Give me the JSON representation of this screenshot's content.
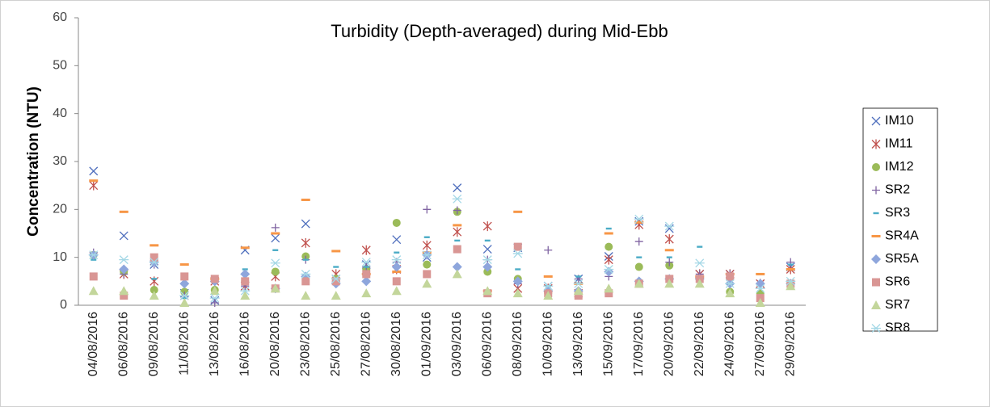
{
  "chart_data": {
    "type": "scatter",
    "title": "Turbidity (Depth-averaged) during Mid-Ebb",
    "y_label": "Concentration (NTU)",
    "categories": [
      "04/08/2016",
      "06/08/2016",
      "09/08/2016",
      "11/08/2016",
      "13/08/2016",
      "16/08/2016",
      "20/08/2016",
      "23/08/2016",
      "25/08/2016",
      "27/08/2016",
      "30/08/2016",
      "01/09/2016",
      "03/09/2016",
      "06/09/2016",
      "08/09/2016",
      "10/09/2016",
      "13/09/2016",
      "15/09/2016",
      "17/09/2016",
      "20/09/2016",
      "22/09/2016",
      "24/09/2016",
      "27/09/2016",
      "29/09/2016"
    ],
    "ylim": [
      0,
      60
    ],
    "yticks": [
      0,
      10,
      20,
      30,
      40,
      50,
      60
    ],
    "grid": false,
    "legend": "right",
    "series": [
      {
        "name": "IM10",
        "color": "#4f6fbd",
        "marker": "x",
        "values": [
          28,
          14.5,
          8.5,
          2.5,
          1,
          11.5,
          14,
          17,
          5.5,
          8.5,
          13.7,
          10,
          24.5,
          11.7,
          12,
          4,
          5.5,
          10.2,
          17.5,
          16,
          6.5,
          6.5,
          4.5,
          8
        ]
      },
      {
        "name": "IM11",
        "color": "#c0504d",
        "marker": "asterisk",
        "values": [
          25,
          6.5,
          5,
          2,
          5,
          4,
          6,
          13,
          6.5,
          11.5,
          7.5,
          12.5,
          15.3,
          16.5,
          3.5,
          3.5,
          2.5,
          9.5,
          16.8,
          13.8,
          6.5,
          6.5,
          4.5,
          7.5
        ]
      },
      {
        "name": "IM12",
        "color": "#9bbb59",
        "marker": "circle",
        "values": [
          10.5,
          7,
          3.2,
          2.8,
          3.2,
          5,
          7,
          10.2,
          5.5,
          7.5,
          17.2,
          8.5,
          19.5,
          7,
          5.5,
          2.5,
          2.5,
          12.2,
          8,
          8.3,
          5.5,
          2.8,
          2.5,
          4.5
        ]
      },
      {
        "name": "SR2",
        "color": "#8064a2",
        "marker": "plus",
        "values": [
          11,
          6.5,
          8.5,
          2,
          0.5,
          4,
          16.2,
          9.5,
          5,
          8,
          9,
          20,
          19.8,
          9.5,
          4.5,
          11.5,
          5.5,
          6,
          13.3,
          9,
          6.5,
          6.5,
          4.5,
          9
        ]
      },
      {
        "name": "SR3",
        "color": "#4bacc6",
        "marker": "dash",
        "values": [
          9.5,
          7.5,
          5.5,
          1.5,
          2.5,
          7.5,
          11.5,
          9.5,
          8,
          8,
          11,
          14.2,
          13.5,
          13.5,
          7.5,
          4,
          6,
          16,
          10,
          10,
          12.2,
          6,
          6.5,
          8.5
        ]
      },
      {
        "name": "SR4A",
        "color": "#f79646",
        "marker": "bar",
        "values": [
          26,
          19.5,
          12.5,
          8.5,
          5.5,
          12,
          15,
          22,
          11.3,
          6.5,
          7,
          11,
          16.7,
          3,
          19.5,
          6,
          4.5,
          15,
          17.3,
          11.5,
          6,
          6.5,
          6.5,
          7.5
        ]
      },
      {
        "name": "SR5A",
        "color": "#8ea6dc",
        "marker": "diamond",
        "values": [
          10.5,
          7.5,
          9,
          4.5,
          5,
          6.5,
          3.5,
          6,
          4.5,
          5,
          8,
          10.5,
          8,
          8,
          5,
          3,
          3,
          7,
          5,
          5.5,
          5.5,
          4.5,
          4.5,
          4.5
        ]
      },
      {
        "name": "SR6",
        "color": "#d99694",
        "marker": "square",
        "values": [
          6,
          2,
          10,
          6,
          5.5,
          5,
          3.5,
          5,
          5,
          6.5,
          5,
          6.5,
          11.7,
          2.5,
          12.2,
          2.5,
          2,
          2.5,
          4.5,
          5.5,
          5.5,
          6,
          1.5,
          4.5
        ]
      },
      {
        "name": "SR7",
        "color": "#c3d69b",
        "marker": "triangle",
        "values": [
          3,
          3,
          2,
          0.5,
          3,
          2,
          3.5,
          2,
          2,
          2.5,
          3,
          4.5,
          6.5,
          3,
          2.5,
          2,
          3,
          3.5,
          4.5,
          4.5,
          4.5,
          2.5,
          0.5,
          4
        ]
      },
      {
        "name": "SR8",
        "color": "#a5d8e6",
        "marker": "star",
        "values": [
          10.5,
          9.5,
          9,
          2,
          1.5,
          3,
          8.8,
          6.5,
          5.5,
          9,
          9.5,
          10.5,
          22.2,
          9.5,
          10.8,
          4,
          4.5,
          7.5,
          18,
          16.5,
          8.8,
          4.5,
          3.5,
          5
        ]
      }
    ]
  }
}
